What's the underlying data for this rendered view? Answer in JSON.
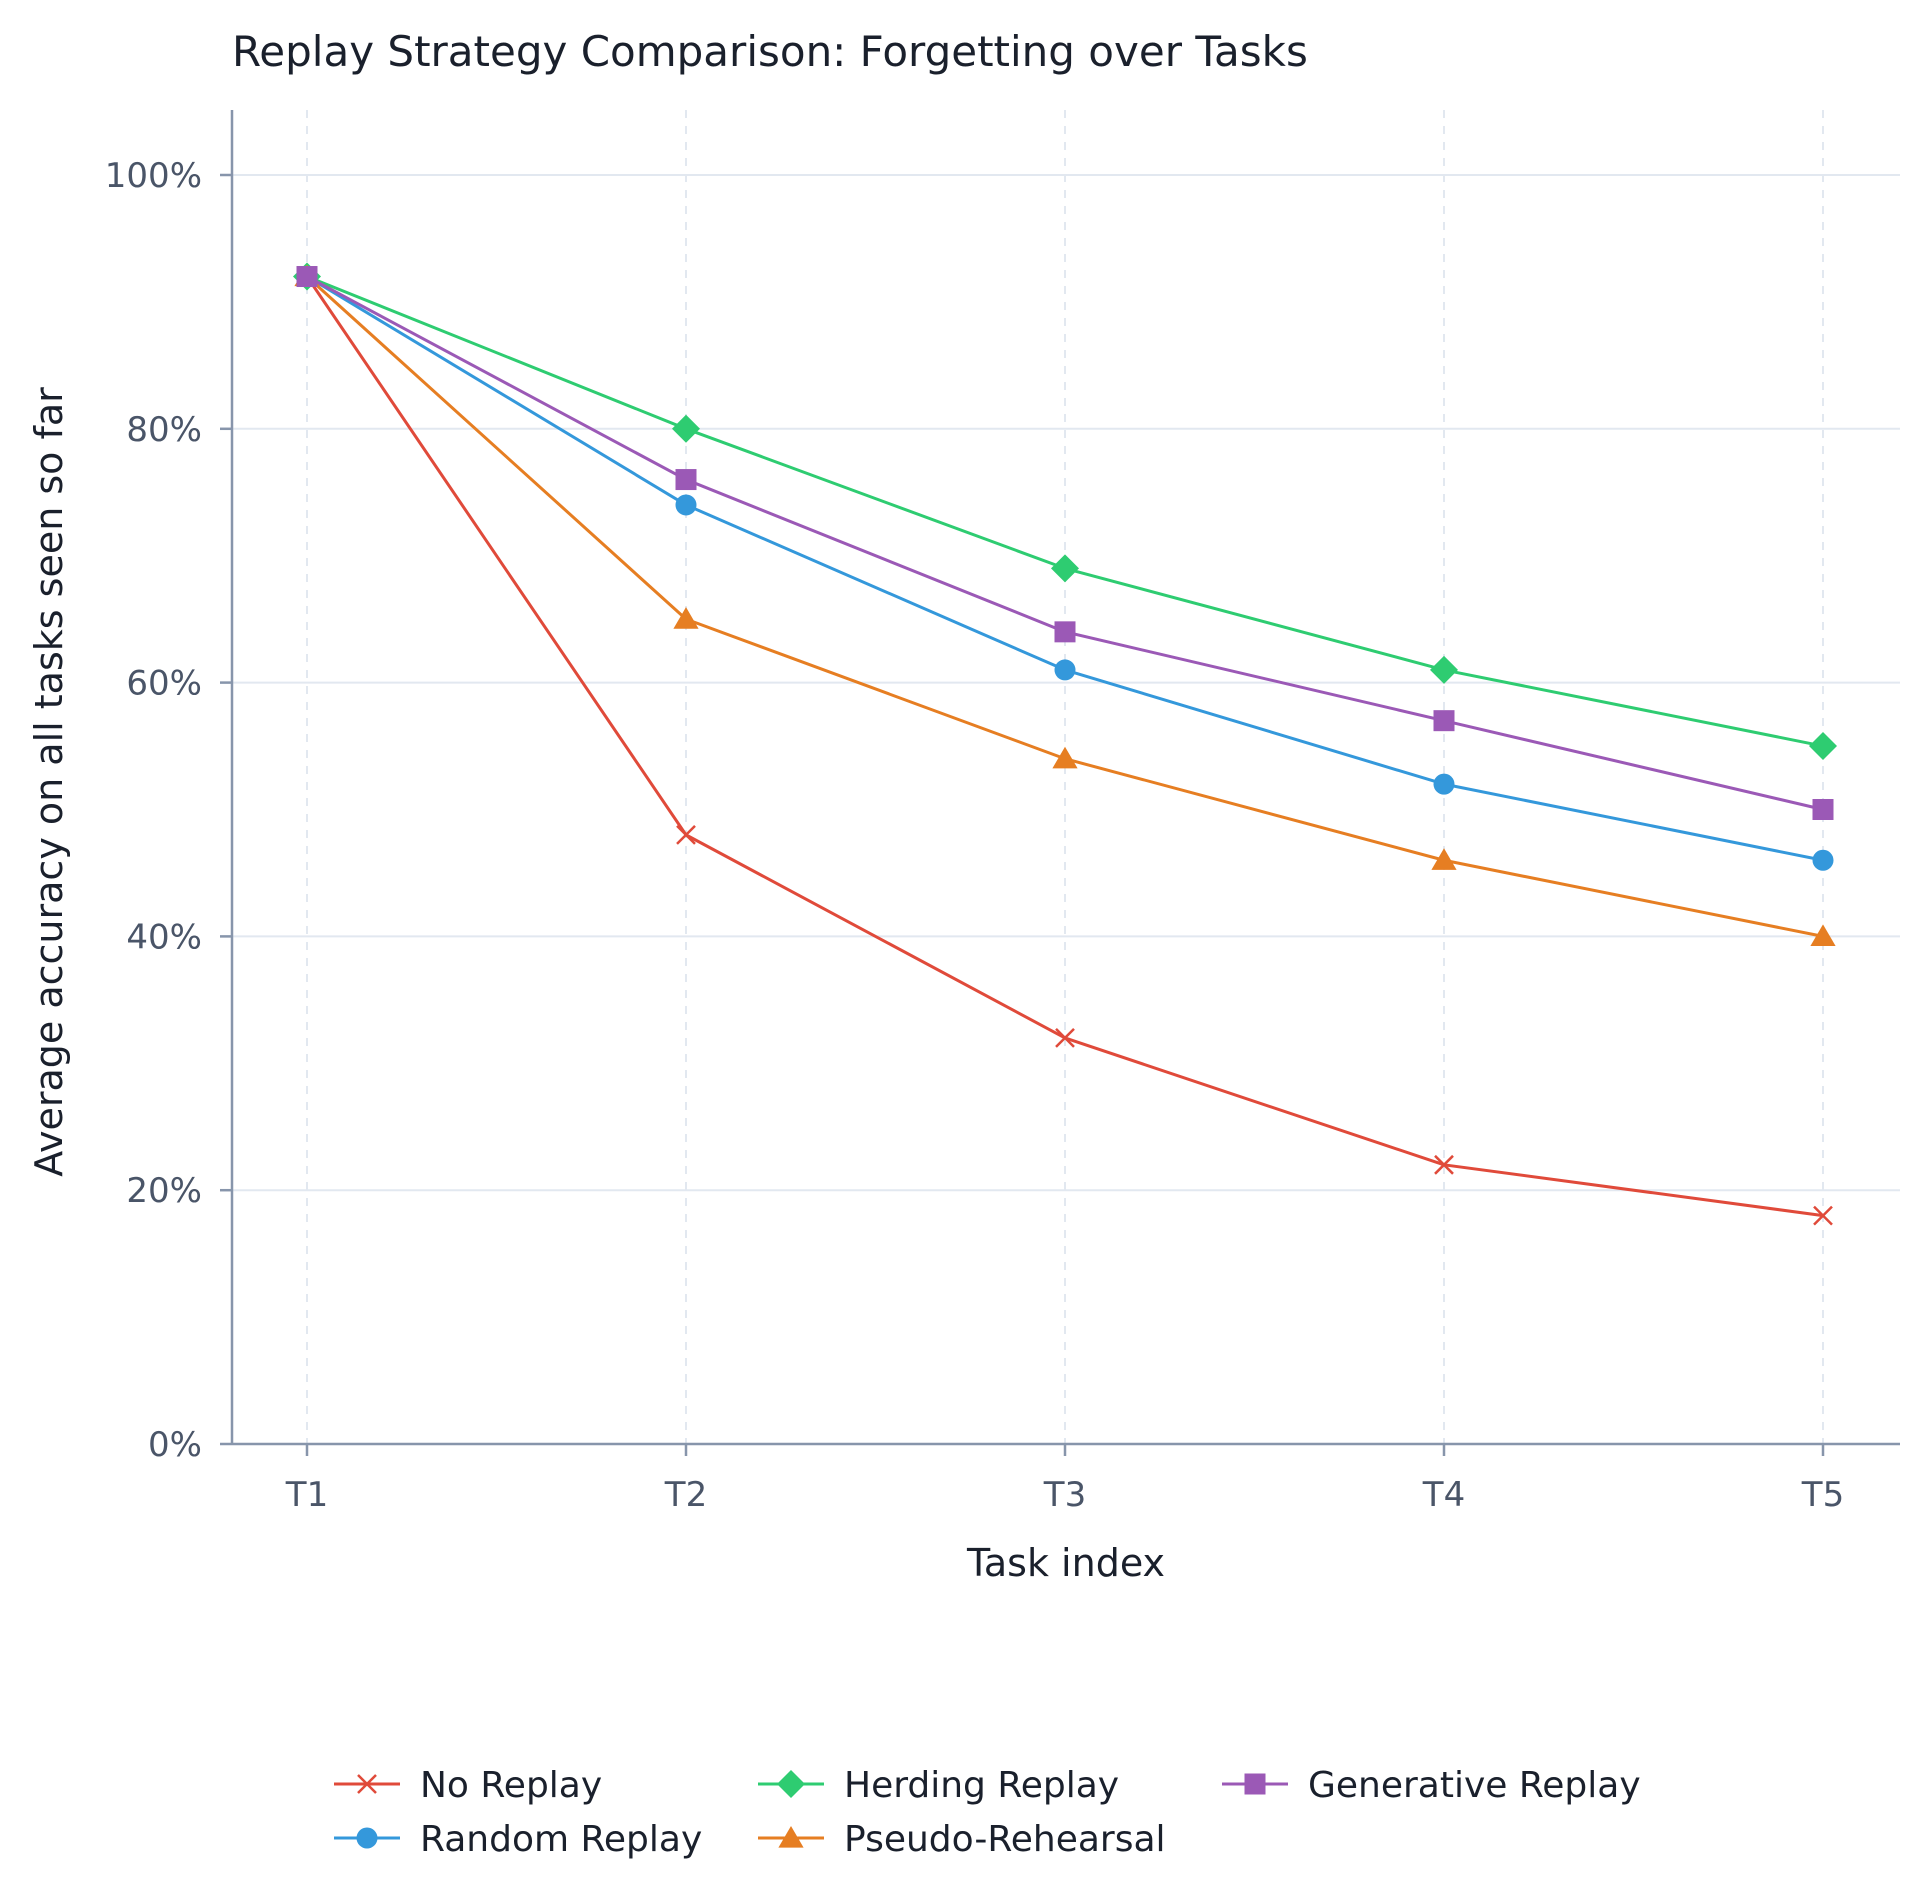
{
  "chart_data": {
    "type": "line",
    "title": "Replay Strategy Comparison: Forgetting over Tasks",
    "xlabel": "Task index",
    "ylabel": "Average accuracy on all tasks seen so far",
    "categories": [
      "T1",
      "T2",
      "T3",
      "T4",
      "T5"
    ],
    "ylim": [
      0,
      100
    ],
    "yticks": [
      0,
      20,
      40,
      60,
      80,
      100
    ],
    "ytick_labels": [
      "0%",
      "20%",
      "40%",
      "60%",
      "80%",
      "100%"
    ],
    "grid": true,
    "legend_position": "bottom",
    "series": [
      {
        "name": "No Replay",
        "values": [
          92,
          48,
          32,
          22,
          18
        ],
        "color": "#e04a3a",
        "marker": "x"
      },
      {
        "name": "Random Replay",
        "values": [
          92,
          74,
          61,
          52,
          46
        ],
        "color": "#3498db",
        "marker": "circle"
      },
      {
        "name": "Herding Replay",
        "values": [
          92,
          80,
          69,
          61,
          55
        ],
        "color": "#2ecc71",
        "marker": "diamond"
      },
      {
        "name": "Pseudo-Rehearsal",
        "values": [
          92,
          65,
          54,
          46,
          40
        ],
        "color": "#e67e22",
        "marker": "triangle"
      },
      {
        "name": "Generative Replay",
        "values": [
          92,
          76,
          64,
          57,
          50
        ],
        "color": "#9b59b6",
        "marker": "square"
      }
    ]
  }
}
